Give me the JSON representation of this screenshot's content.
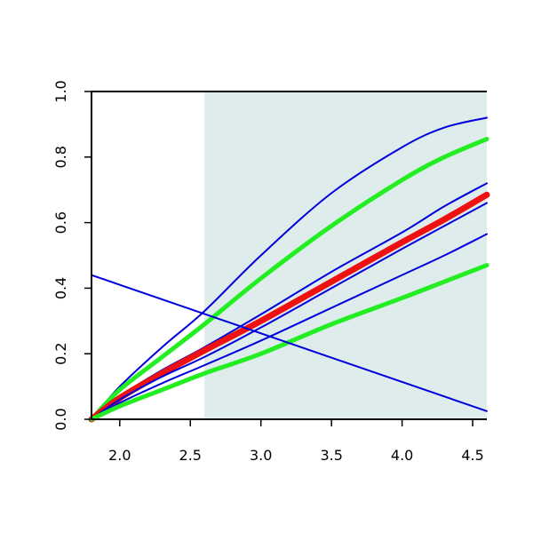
{
  "chart_data": {
    "type": "line",
    "title": "",
    "xlabel": "",
    "ylabel": "",
    "xlim": [
      1.8,
      4.6
    ],
    "ylim": [
      0.0,
      1.0
    ],
    "x_ticks": [
      2.0,
      2.5,
      3.0,
      3.5,
      4.0,
      4.5
    ],
    "x_tick_labels": [
      "2.0",
      "2.5",
      "3.0",
      "3.5",
      "4.0",
      "4.5"
    ],
    "y_ticks": [
      0.0,
      0.2,
      0.4,
      0.6,
      0.8,
      1.0
    ],
    "y_tick_labels": [
      "0.0",
      "0.2",
      "0.4",
      "0.6",
      "0.8",
      "1.0"
    ],
    "grid": false,
    "legend": "none",
    "shaded_region": {
      "x_start": 2.6,
      "x_end": 4.6,
      "color": "#dfecec"
    },
    "series": [
      {
        "color": "#0000dd",
        "width": "thin",
        "x": [
          1.8,
          2.0,
          2.3,
          2.6,
          3.0,
          3.5,
          4.0,
          4.3,
          4.6
        ],
        "y": [
          0.0,
          0.1,
          0.22,
          0.33,
          0.5,
          0.69,
          0.83,
          0.89,
          0.92
        ]
      },
      {
        "color": "#22ee22",
        "width": "thick",
        "x": [
          1.8,
          2.0,
          2.3,
          2.6,
          3.0,
          3.5,
          4.0,
          4.3,
          4.6
        ],
        "y": [
          0.0,
          0.09,
          0.19,
          0.29,
          0.43,
          0.59,
          0.73,
          0.8,
          0.855
        ]
      },
      {
        "color": "#0000dd",
        "width": "thin",
        "x": [
          1.8,
          2.0,
          2.3,
          2.6,
          3.0,
          3.5,
          4.0,
          4.3,
          4.6
        ],
        "y": [
          0.0,
          0.07,
          0.15,
          0.22,
          0.32,
          0.45,
          0.57,
          0.65,
          0.72
        ]
      },
      {
        "color": "#ee1111",
        "width": "extra-thick",
        "x": [
          1.8,
          2.0,
          2.3,
          2.6,
          3.0,
          3.5,
          4.0,
          4.3,
          4.6
        ],
        "y": [
          0.0,
          0.065,
          0.14,
          0.21,
          0.3,
          0.42,
          0.54,
          0.61,
          0.685
        ]
      },
      {
        "color": "#0000dd",
        "width": "thin",
        "x": [
          1.8,
          2.0,
          2.3,
          2.6,
          3.0,
          3.5,
          4.0,
          4.3,
          4.6
        ],
        "y": [
          0.0,
          0.06,
          0.13,
          0.19,
          0.28,
          0.4,
          0.52,
          0.59,
          0.66
        ]
      },
      {
        "color": "#0000dd",
        "width": "thin",
        "x": [
          1.8,
          2.0,
          2.3,
          2.6,
          3.0,
          3.5,
          4.0,
          4.3,
          4.6
        ],
        "y": [
          0.0,
          0.05,
          0.11,
          0.165,
          0.24,
          0.34,
          0.44,
          0.5,
          0.565
        ]
      },
      {
        "color": "#22ee22",
        "width": "thick",
        "x": [
          1.8,
          2.0,
          2.3,
          2.6,
          3.0,
          3.5,
          4.0,
          4.3,
          4.6
        ],
        "y": [
          0.0,
          0.04,
          0.09,
          0.14,
          0.2,
          0.29,
          0.37,
          0.42,
          0.47
        ]
      },
      {
        "color": "#0000dd",
        "width": "thin",
        "x": [
          1.8,
          4.6
        ],
        "y": [
          0.44,
          0.025
        ]
      }
    ]
  }
}
